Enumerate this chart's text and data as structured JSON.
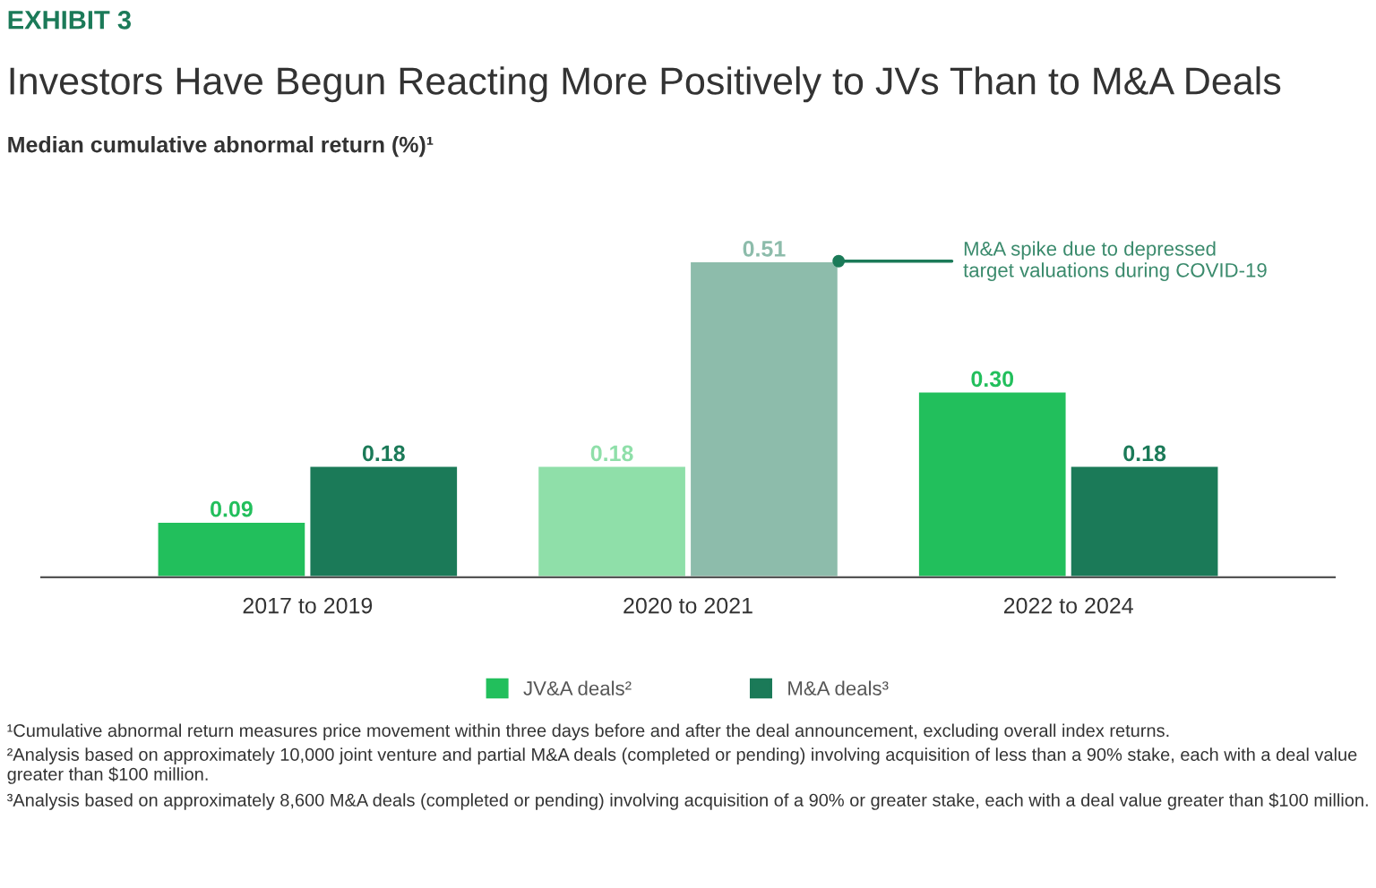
{
  "chart_data": {
    "type": "bar",
    "title": "Investors Have Begun Reacting More Positively to JVs Than to M&A Deals",
    "ylabel": "Median cumulative abnormal return (%)¹",
    "categories": [
      "2017 to 2019",
      "2020 to 2021",
      "2022 to 2024"
    ],
    "series": [
      {
        "name": "JV&A deals²",
        "color": "#22bf5c",
        "colors": [
          "#22bf5c",
          "#8fdfa9",
          "#22bf5c"
        ],
        "values": [
          0.09,
          0.18,
          0.3
        ],
        "value_labels": [
          "0.09",
          "0.18",
          "0.30"
        ]
      },
      {
        "name": "M&A deals³",
        "color": "#1b7a58",
        "colors": [
          "#1b7a58",
          "#8dbcab",
          "#1b7a58"
        ],
        "values": [
          0.18,
          0.51,
          0.18
        ],
        "value_labels": [
          "0.18",
          "0.51",
          "0.18"
        ]
      }
    ],
    "legend": "bottom",
    "grid": false,
    "annotations": [
      "EXHIBIT 3",
      "M&A spike due to depressed\ntarget valuations during COVID-19",
      "¹Cumulative abnormal return measures price movement within three days before and after the deal announcement, excluding overall index returns.",
      "²Analysis based on approximately 10,000 joint venture and partial M&A deals (completed or pending) involving acquisition of less than a 90% stake, each with a deal value greater than $100 million.",
      "³Analysis based on approximately 8,600 M&A deals (completed or pending) involving acquisition of a 90% or greater stake, each with a deal value greater than $100 million."
    ]
  }
}
